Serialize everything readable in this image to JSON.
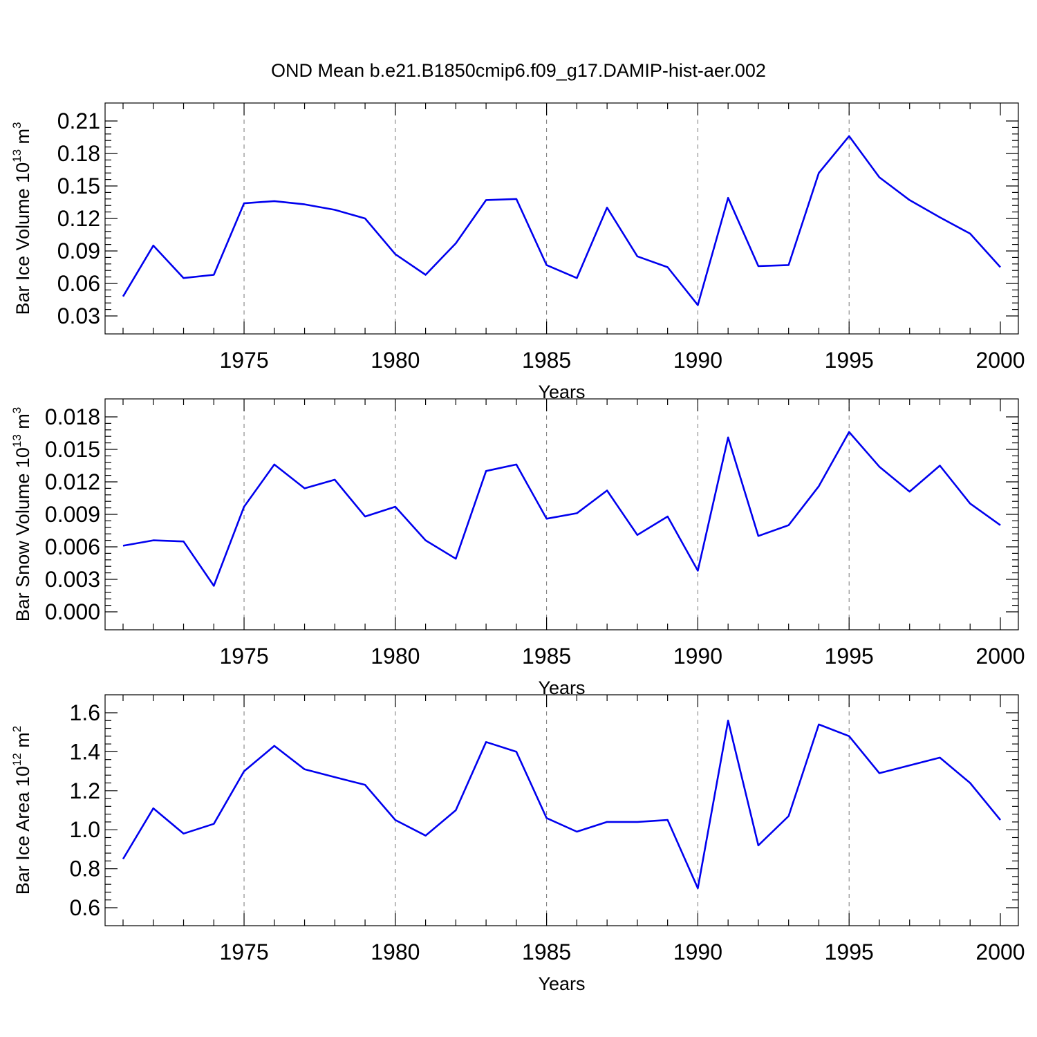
{
  "title": "OND Mean b.e21.B1850cmip6.f09_g17.DAMIP-hist-aer.002",
  "line_color": "#0000ee",
  "chart_data": [
    {
      "type": "line",
      "xlabel": "Years",
      "ylabel": "Bar Ice Volume 10",
      "ylabel_exp": "13",
      "ylabel_unit": " m",
      "ylabel_unit_exp": "3",
      "xlim": [
        1971,
        2000
      ],
      "ylim": [
        0.03,
        0.21
      ],
      "x_ticks": [
        "1975",
        "1980",
        "1985",
        "1990",
        "1995",
        "2000"
      ],
      "y_ticks": [
        "0.03",
        "0.06",
        "0.09",
        "0.12",
        "0.15",
        "0.18",
        "0.21"
      ],
      "grid_x": true,
      "x": [
        1971,
        1972,
        1973,
        1974,
        1975,
        1976,
        1977,
        1978,
        1979,
        1980,
        1981,
        1982,
        1983,
        1984,
        1985,
        1986,
        1987,
        1988,
        1989,
        1990,
        1991,
        1992,
        1993,
        1994,
        1995,
        1996,
        1997,
        1998,
        1999,
        2000
      ],
      "values": [
        0.048,
        0.095,
        0.065,
        0.068,
        0.134,
        0.136,
        0.133,
        0.128,
        0.12,
        0.087,
        0.068,
        0.097,
        0.137,
        0.138,
        0.077,
        0.065,
        0.13,
        0.085,
        0.075,
        0.04,
        0.139,
        0.076,
        0.077,
        0.162,
        0.196,
        0.158,
        0.137,
        0.121,
        0.106,
        0.075
      ]
    },
    {
      "type": "line",
      "xlabel": "Years",
      "ylabel": "Bar Snow Volume 10",
      "ylabel_exp": "13",
      "ylabel_unit": " m",
      "ylabel_unit_exp": "3",
      "xlim": [
        1971,
        2000
      ],
      "ylim": [
        0.0,
        0.018
      ],
      "x_ticks": [
        "1975",
        "1980",
        "1985",
        "1990",
        "1995",
        "2000"
      ],
      "y_ticks": [
        "0.000",
        "0.003",
        "0.006",
        "0.009",
        "0.012",
        "0.015",
        "0.018"
      ],
      "grid_x": true,
      "x": [
        1971,
        1972,
        1973,
        1974,
        1975,
        1976,
        1977,
        1978,
        1979,
        1980,
        1981,
        1982,
        1983,
        1984,
        1985,
        1986,
        1987,
        1988,
        1989,
        1990,
        1991,
        1992,
        1993,
        1994,
        1995,
        1996,
        1997,
        1998,
        1999,
        2000
      ],
      "values": [
        0.0061,
        0.0066,
        0.0065,
        0.0024,
        0.0097,
        0.0136,
        0.0114,
        0.0122,
        0.0088,
        0.0097,
        0.0066,
        0.0049,
        0.013,
        0.0136,
        0.0086,
        0.0091,
        0.0112,
        0.0071,
        0.0088,
        0.0038,
        0.0161,
        0.007,
        0.008,
        0.0116,
        0.0166,
        0.0134,
        0.0111,
        0.0135,
        0.01,
        0.008
      ]
    },
    {
      "type": "line",
      "xlabel": "Years",
      "ylabel": "Bar Ice Area 10",
      "ylabel_exp": "12",
      "ylabel_unit": " m",
      "ylabel_unit_exp": "2",
      "xlim": [
        1971,
        2000
      ],
      "ylim": [
        0.6,
        1.6
      ],
      "x_ticks": [
        "1975",
        "1980",
        "1985",
        "1990",
        "1995",
        "2000"
      ],
      "y_ticks": [
        "0.6",
        "0.8",
        "1.0",
        "1.2",
        "1.4",
        "1.6"
      ],
      "grid_x": true,
      "x": [
        1971,
        1972,
        1973,
        1974,
        1975,
        1976,
        1977,
        1978,
        1979,
        1980,
        1981,
        1982,
        1983,
        1984,
        1985,
        1986,
        1987,
        1988,
        1989,
        1990,
        1991,
        1992,
        1993,
        1994,
        1995,
        1996,
        1997,
        1998,
        1999,
        2000
      ],
      "values": [
        0.85,
        1.11,
        0.98,
        1.03,
        1.3,
        1.43,
        1.31,
        1.27,
        1.23,
        1.05,
        0.97,
        1.1,
        1.45,
        1.4,
        1.06,
        0.99,
        1.04,
        1.04,
        1.05,
        0.7,
        1.56,
        0.92,
        1.07,
        1.54,
        1.48,
        1.29,
        1.33,
        1.37,
        1.24,
        1.05
      ]
    }
  ]
}
